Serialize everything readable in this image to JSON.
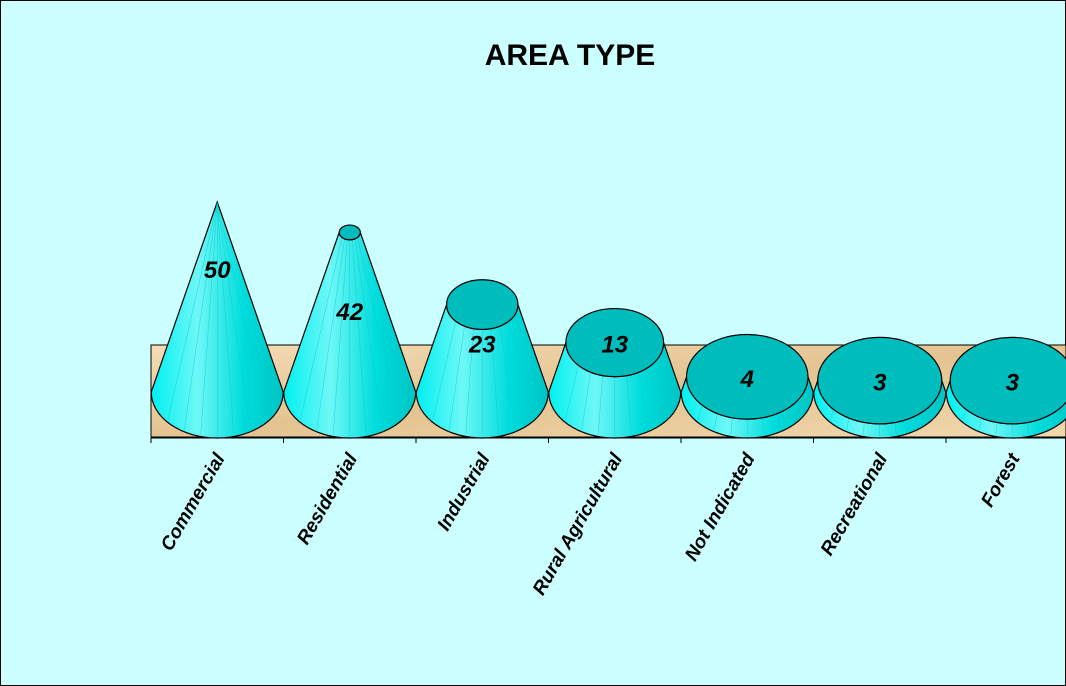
{
  "chart_data": {
    "type": "bar",
    "title": "AREA TYPE",
    "categories": [
      "Commercial",
      "Residential",
      "Industrial",
      "Rural Agricultural",
      "Not Indicated",
      "Recreational",
      "Forest"
    ],
    "values": [
      50,
      42,
      23,
      13,
      4,
      3,
      3
    ],
    "data_labels": [
      "50",
      "42",
      "23",
      "13",
      "4",
      "3",
      "3"
    ],
    "xlabel": "",
    "ylabel": "",
    "ylim": [
      0,
      50
    ],
    "grid": false,
    "legend": "none",
    "shape": "3D cone",
    "colors": {
      "background": "#ccffff",
      "cone": "#00e5e5",
      "cone_top": "#00bdbd",
      "floor": "#e8c79a"
    }
  }
}
